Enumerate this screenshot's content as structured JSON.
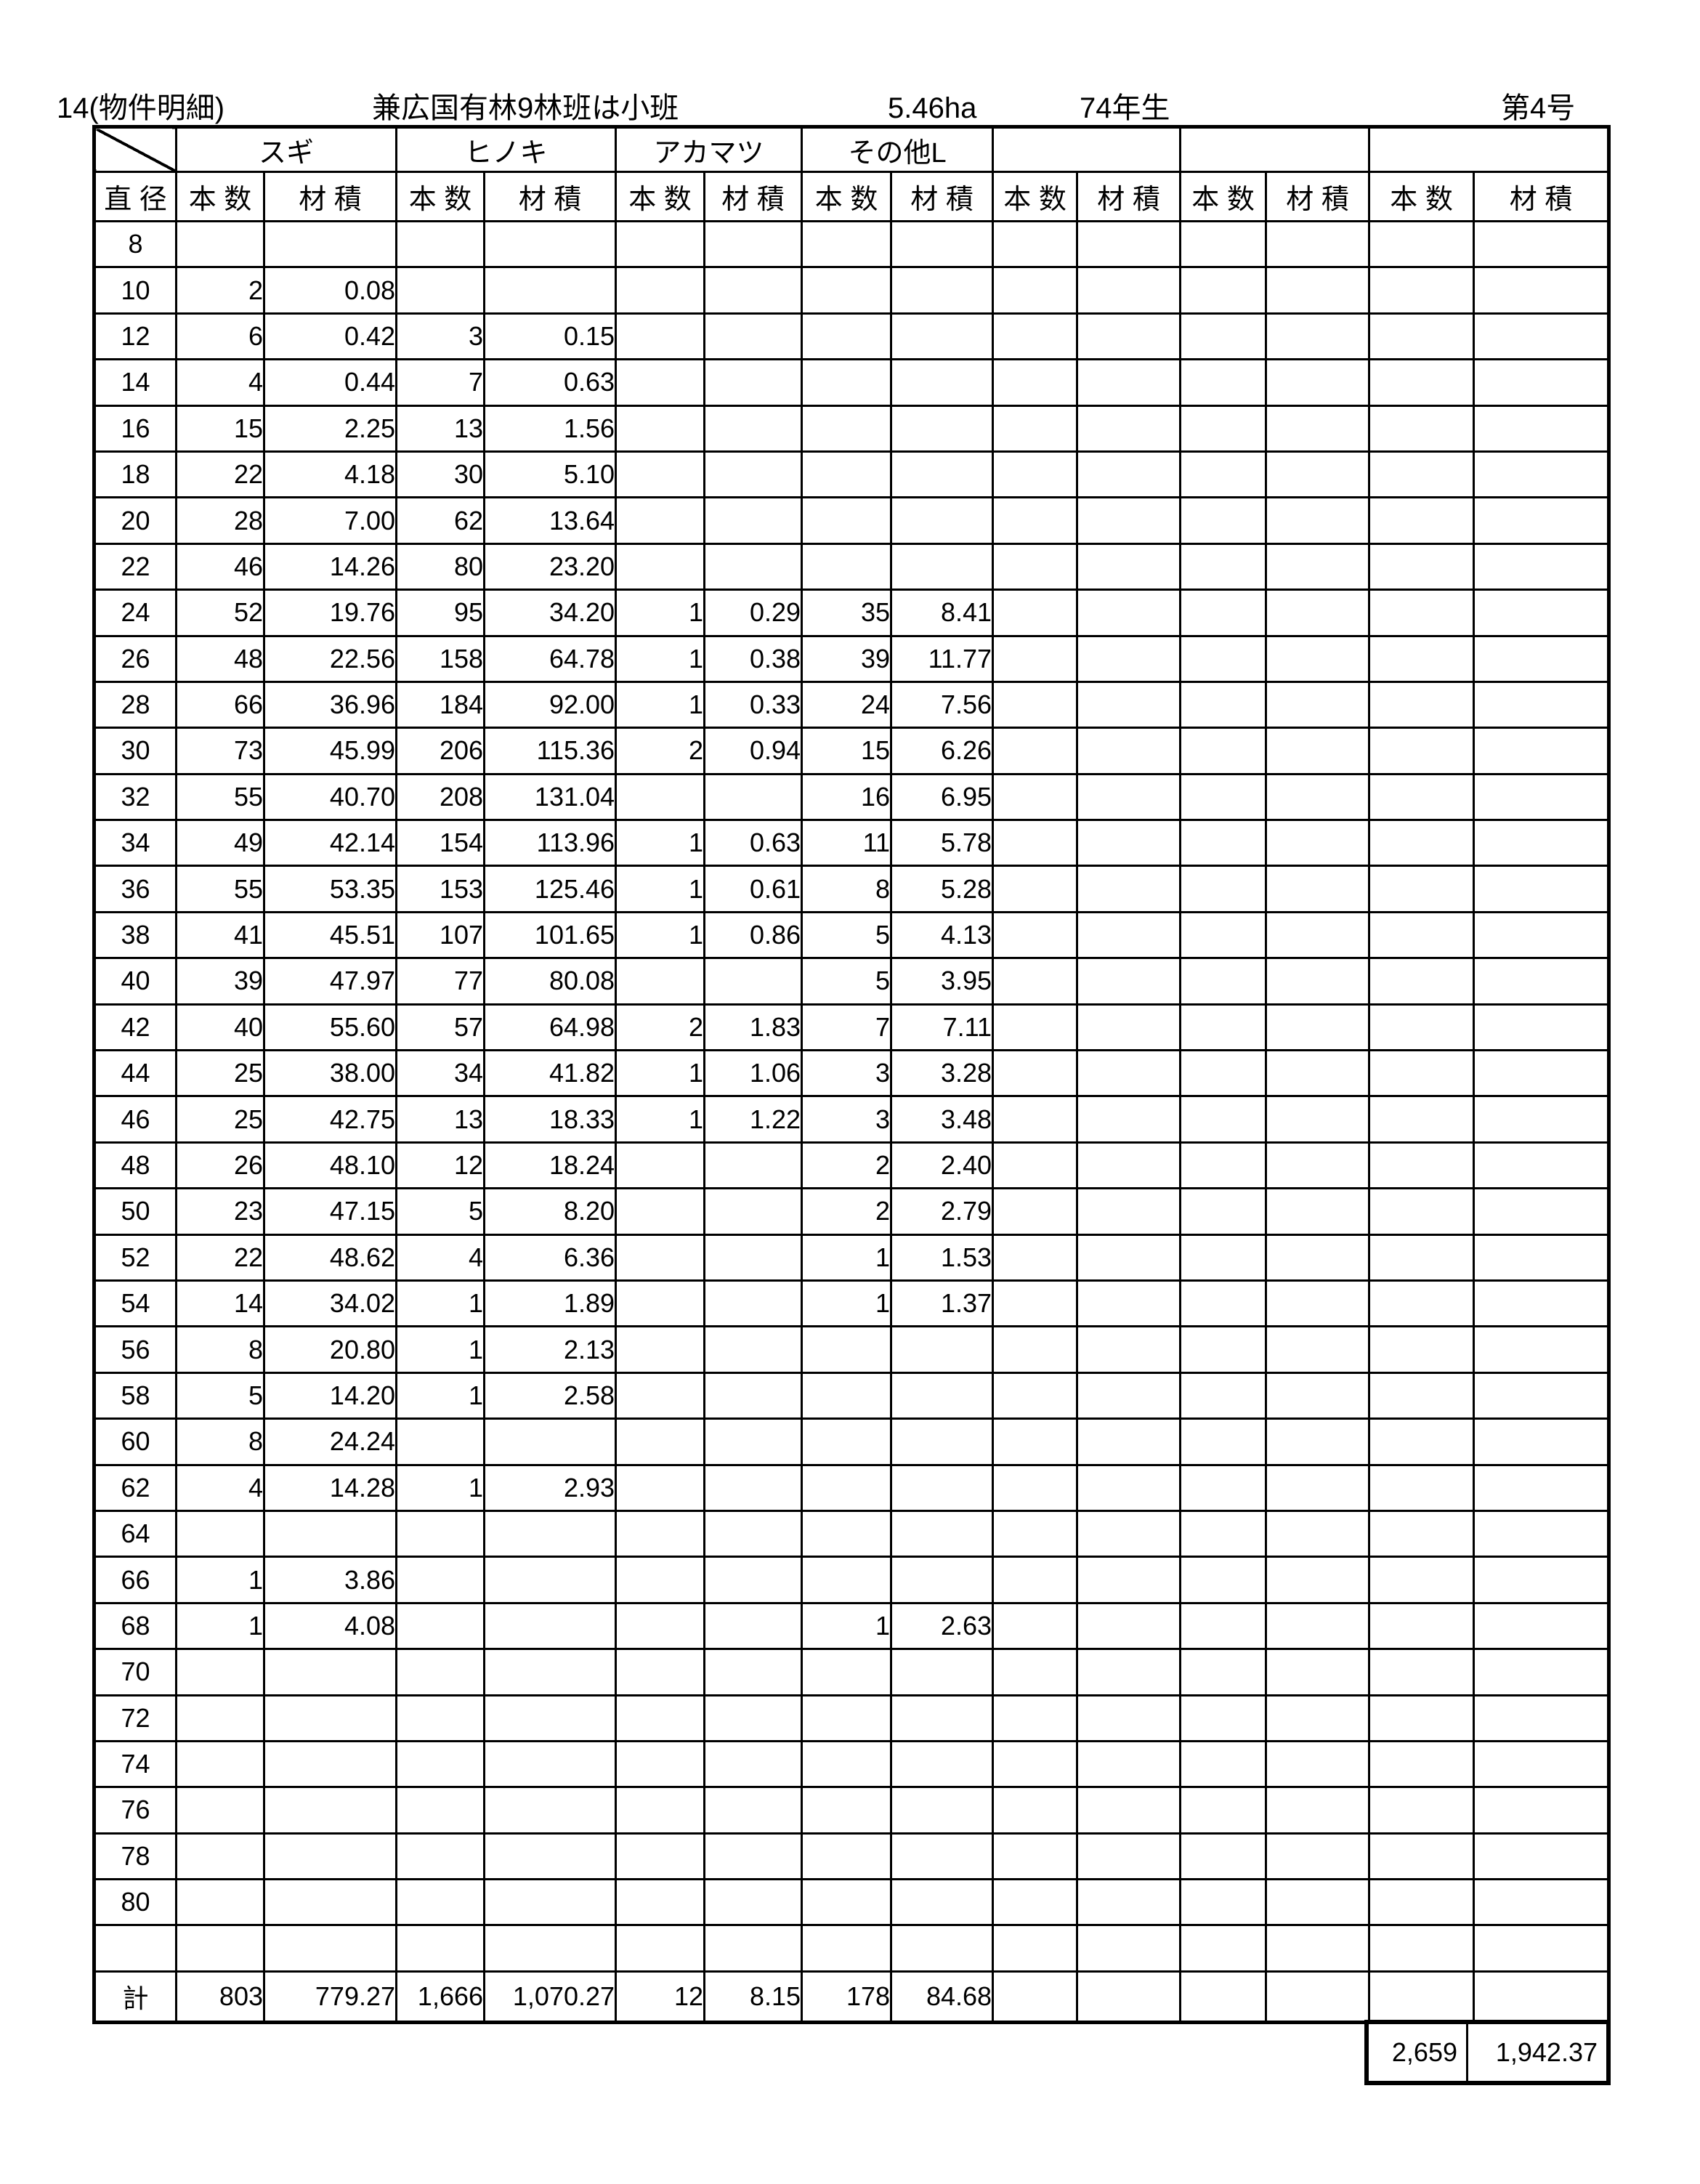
{
  "header": {
    "form_label": "14(物件明細)",
    "forest_title": "兼広国有林9林班は小班",
    "area": "5.46ha",
    "stand_age": "74年生",
    "sale_number": "第4号"
  },
  "table": {
    "diameter_header": "直 径",
    "count_header": "本 数",
    "volume_header": "材 積",
    "species_groups": [
      "スギ",
      "ヒノキ",
      "アカマツ",
      "その他L",
      "",
      "",
      ""
    ],
    "rows": [
      [
        "8",
        "",
        "",
        "",
        "",
        "",
        "",
        "",
        ""
      ],
      [
        "10",
        "2",
        "0.08",
        "",
        "",
        "",
        "",
        "",
        ""
      ],
      [
        "12",
        "6",
        "0.42",
        "3",
        "0.15",
        "",
        "",
        "",
        ""
      ],
      [
        "14",
        "4",
        "0.44",
        "7",
        "0.63",
        "",
        "",
        "",
        ""
      ],
      [
        "16",
        "15",
        "2.25",
        "13",
        "1.56",
        "",
        "",
        "",
        ""
      ],
      [
        "18",
        "22",
        "4.18",
        "30",
        "5.10",
        "",
        "",
        "",
        ""
      ],
      [
        "20",
        "28",
        "7.00",
        "62",
        "13.64",
        "",
        "",
        "",
        ""
      ],
      [
        "22",
        "46",
        "14.26",
        "80",
        "23.20",
        "",
        "",
        "",
        ""
      ],
      [
        "24",
        "52",
        "19.76",
        "95",
        "34.20",
        "1",
        "0.29",
        "35",
        "8.41"
      ],
      [
        "26",
        "48",
        "22.56",
        "158",
        "64.78",
        "1",
        "0.38",
        "39",
        "11.77"
      ],
      [
        "28",
        "66",
        "36.96",
        "184",
        "92.00",
        "1",
        "0.33",
        "24",
        "7.56"
      ],
      [
        "30",
        "73",
        "45.99",
        "206",
        "115.36",
        "2",
        "0.94",
        "15",
        "6.26"
      ],
      [
        "32",
        "55",
        "40.70",
        "208",
        "131.04",
        "",
        "",
        "16",
        "6.95"
      ],
      [
        "34",
        "49",
        "42.14",
        "154",
        "113.96",
        "1",
        "0.63",
        "11",
        "5.78"
      ],
      [
        "36",
        "55",
        "53.35",
        "153",
        "125.46",
        "1",
        "0.61",
        "8",
        "5.28"
      ],
      [
        "38",
        "41",
        "45.51",
        "107",
        "101.65",
        "1",
        "0.86",
        "5",
        "4.13"
      ],
      [
        "40",
        "39",
        "47.97",
        "77",
        "80.08",
        "",
        "",
        "5",
        "3.95"
      ],
      [
        "42",
        "40",
        "55.60",
        "57",
        "64.98",
        "2",
        "1.83",
        "7",
        "7.11"
      ],
      [
        "44",
        "25",
        "38.00",
        "34",
        "41.82",
        "1",
        "1.06",
        "3",
        "3.28"
      ],
      [
        "46",
        "25",
        "42.75",
        "13",
        "18.33",
        "1",
        "1.22",
        "3",
        "3.48"
      ],
      [
        "48",
        "26",
        "48.10",
        "12",
        "18.24",
        "",
        "",
        "2",
        "2.40"
      ],
      [
        "50",
        "23",
        "47.15",
        "5",
        "8.20",
        "",
        "",
        "2",
        "2.79"
      ],
      [
        "52",
        "22",
        "48.62",
        "4",
        "6.36",
        "",
        "",
        "1",
        "1.53"
      ],
      [
        "54",
        "14",
        "34.02",
        "1",
        "1.89",
        "",
        "",
        "1",
        "1.37"
      ],
      [
        "56",
        "8",
        "20.80",
        "1",
        "2.13",
        "",
        "",
        "",
        ""
      ],
      [
        "58",
        "5",
        "14.20",
        "1",
        "2.58",
        "",
        "",
        "",
        ""
      ],
      [
        "60",
        "8",
        "24.24",
        "",
        "",
        "",
        "",
        "",
        ""
      ],
      [
        "62",
        "4",
        "14.28",
        "1",
        "2.93",
        "",
        "",
        "",
        ""
      ],
      [
        "64",
        "",
        "",
        "",
        "",
        "",
        "",
        "",
        ""
      ],
      [
        "66",
        "1",
        "3.86",
        "",
        "",
        "",
        "",
        "",
        ""
      ],
      [
        "68",
        "1",
        "4.08",
        "",
        "",
        "",
        "",
        "1",
        "2.63"
      ],
      [
        "70",
        "",
        "",
        "",
        "",
        "",
        "",
        "",
        ""
      ],
      [
        "72",
        "",
        "",
        "",
        "",
        "",
        "",
        "",
        ""
      ],
      [
        "74",
        "",
        "",
        "",
        "",
        "",
        "",
        "",
        ""
      ],
      [
        "76",
        "",
        "",
        "",
        "",
        "",
        "",
        "",
        ""
      ],
      [
        "78",
        "",
        "",
        "",
        "",
        "",
        "",
        "",
        ""
      ],
      [
        "80",
        "",
        "",
        "",
        "",
        "",
        "",
        "",
        ""
      ],
      [
        "",
        "",
        "",
        "",
        "",
        "",
        "",
        "",
        ""
      ]
    ],
    "total_row": [
      "計",
      "803",
      "779.27",
      "1,666",
      "1,070.27",
      "12",
      "8.15",
      "178",
      "84.68"
    ],
    "grand_total": {
      "count": "2,659",
      "volume": "1,942.37"
    }
  }
}
